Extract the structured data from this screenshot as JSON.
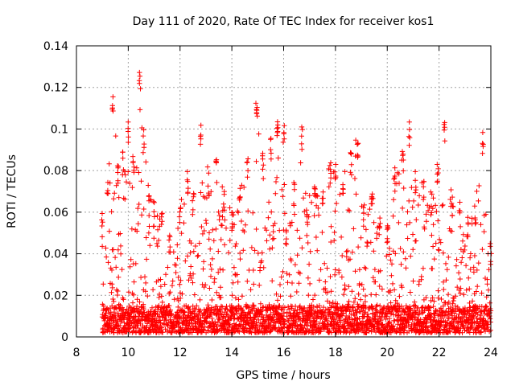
{
  "chart_data": {
    "type": "scatter",
    "title": "Day 111 of 2020, Rate Of TEC Index for receiver kos1",
    "xlabel": "GPS time / hours",
    "ylabel": "ROTI / TECUs",
    "xlim": [
      8,
      24
    ],
    "ylim": [
      0,
      0.14
    ],
    "x_ticks": [
      "8",
      "10",
      "12",
      "14",
      "16",
      "18",
      "20",
      "22",
      "24"
    ],
    "y_ticks": [
      "0",
      "0.02",
      "0.04",
      "0.06",
      "0.08",
      "0.1",
      "0.12",
      "0.14"
    ],
    "grid": true,
    "marker": "+",
    "color": "#ff0000",
    "data_start_hour": 9.0,
    "data_end_hour": 24.0,
    "baseline_range": [
      0.002,
      0.015
    ],
    "envelope_peaks": [
      [
        9.0,
        0.06
      ],
      [
        9.2,
        0.08
      ],
      [
        9.4,
        0.118
      ],
      [
        9.6,
        0.085
      ],
      [
        9.8,
        0.09
      ],
      [
        10.0,
        0.104
      ],
      [
        10.2,
        0.09
      ],
      [
        10.45,
        0.128
      ],
      [
        10.6,
        0.1
      ],
      [
        10.8,
        0.07
      ],
      [
        11.0,
        0.065
      ],
      [
        11.3,
        0.06
      ],
      [
        11.6,
        0.05
      ],
      [
        12.0,
        0.065
      ],
      [
        12.3,
        0.08
      ],
      [
        12.5,
        0.07
      ],
      [
        12.8,
        0.102
      ],
      [
        13.1,
        0.08
      ],
      [
        13.4,
        0.086
      ],
      [
        13.7,
        0.07
      ],
      [
        14.0,
        0.06
      ],
      [
        14.3,
        0.072
      ],
      [
        14.6,
        0.086
      ],
      [
        14.95,
        0.113
      ],
      [
        15.2,
        0.09
      ],
      [
        15.5,
        0.096
      ],
      [
        15.75,
        0.106
      ],
      [
        16.0,
        0.104
      ],
      [
        16.1,
        0.055
      ],
      [
        16.4,
        0.075
      ],
      [
        16.7,
        0.102
      ],
      [
        16.9,
        0.065
      ],
      [
        17.2,
        0.075
      ],
      [
        17.5,
        0.07
      ],
      [
        17.8,
        0.087
      ],
      [
        18.0,
        0.083
      ],
      [
        18.3,
        0.08
      ],
      [
        18.6,
        0.09
      ],
      [
        18.85,
        0.097
      ],
      [
        19.1,
        0.065
      ],
      [
        19.4,
        0.072
      ],
      [
        19.7,
        0.06
      ],
      [
        20.0,
        0.055
      ],
      [
        20.3,
        0.082
      ],
      [
        20.6,
        0.09
      ],
      [
        20.85,
        0.104
      ],
      [
        21.1,
        0.08
      ],
      [
        21.4,
        0.075
      ],
      [
        21.7,
        0.07
      ],
      [
        21.95,
        0.085
      ],
      [
        22.2,
        0.104
      ],
      [
        22.5,
        0.07
      ],
      [
        22.8,
        0.065
      ],
      [
        23.1,
        0.06
      ],
      [
        23.4,
        0.065
      ],
      [
        23.7,
        0.1
      ],
      [
        24.0,
        0.045
      ]
    ],
    "gaps": [
      [
        16.05,
        16.12
      ]
    ]
  }
}
